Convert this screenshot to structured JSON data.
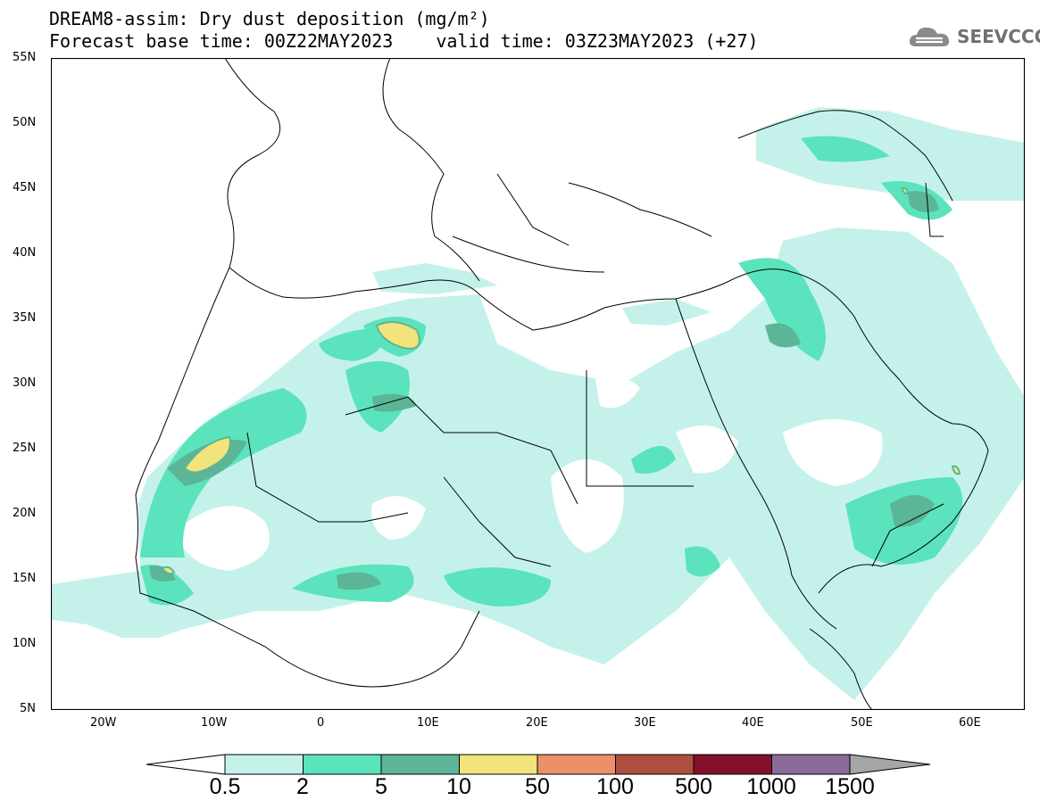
{
  "header": {
    "title_line1": "DREAM8-assim: Dry dust deposition (mg/m²)",
    "base_time": "Forecast base time: 00Z22MAY2023",
    "valid_time": "valid time: 03Z23MAY2023 (+27)"
  },
  "logo": {
    "text": "SEEVCCC",
    "icon": "cloud-logo-icon"
  },
  "map": {
    "lon_range": [
      -25,
      65
    ],
    "lat_range": [
      5,
      55
    ],
    "lat_labels": [
      "55N",
      "50N",
      "45N",
      "40N",
      "35N",
      "30N",
      "25N",
      "20N",
      "15N",
      "10N",
      "5N"
    ],
    "lon_labels": [
      "20W",
      "10W",
      "0",
      "10E",
      "20E",
      "30E",
      "40E",
      "50E",
      "60E"
    ]
  },
  "colorbar": {
    "labels": [
      "0.5",
      "2",
      "5",
      "10",
      "50",
      "100",
      "500",
      "1000",
      "1500"
    ],
    "colors": [
      "#c4f2ea",
      "#5be3bd",
      "#5cb596",
      "#f2e47a",
      "#eb9068",
      "#ad4e3e",
      "#840f2b",
      "#8c6a99"
    ],
    "under_color": "#ffffff",
    "over_color": "#a6a6a6"
  }
}
